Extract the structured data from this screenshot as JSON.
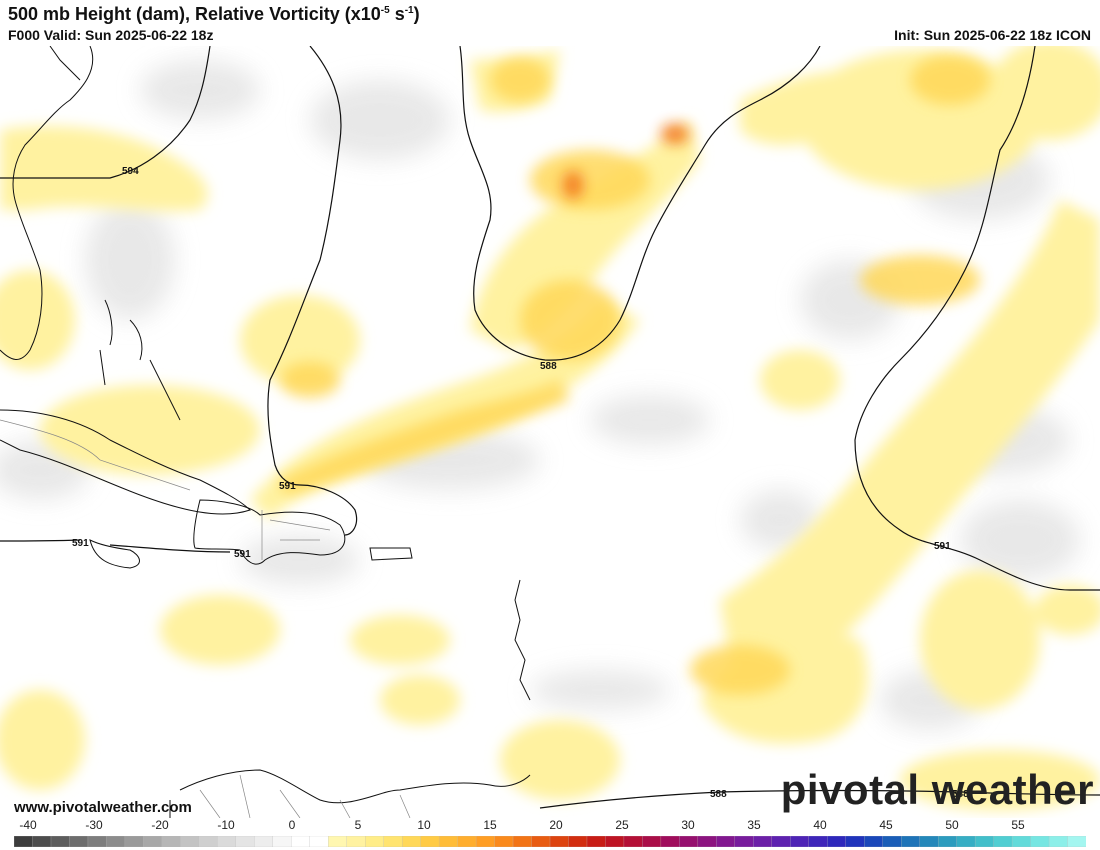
{
  "header": {
    "title_main": "500 mb Height (dam), Relative Vorticity (x10",
    "title_exp1": "-5",
    "title_mid": " s",
    "title_exp2": "-1",
    "title_end": ")",
    "valid": "F000 Valid: Sun 2025-06-22 18z",
    "init": "Init: Sun 2025-06-22 18z ICON"
  },
  "footer": {
    "website": "www.pivotalweather.com",
    "logo": "pivotal weather"
  },
  "contour_labels": [
    "594",
    "588",
    "591",
    "591",
    "591",
    "591",
    "588",
    "588"
  ],
  "colorbar": {
    "tick_labels": [
      "-40",
      "-30",
      "-20",
      "-10",
      "0",
      "5",
      "10",
      "15",
      "20",
      "25",
      "30",
      "35",
      "40",
      "45",
      "50",
      "55"
    ],
    "colors": [
      "#3d3d3d",
      "#4d4d4d",
      "#5d5d5d",
      "#6d6d6d",
      "#7d7d7d",
      "#8c8c8c",
      "#9a9a9a",
      "#a8a8a8",
      "#b6b6b6",
      "#c3c3c3",
      "#cfcfcf",
      "#dadada",
      "#e4e4e4",
      "#ededed",
      "#f6f6f6",
      "#ffffff",
      "#ffffff",
      "#fff7b0",
      "#fff2a0",
      "#ffed88",
      "#ffe470",
      "#ffd858",
      "#ffcb45",
      "#ffbd38",
      "#ffae2e",
      "#ff9e24",
      "#fa8a1c",
      "#f27416",
      "#e85c12",
      "#dd4410",
      "#d22e10",
      "#c81d16",
      "#be1424",
      "#b41036",
      "#aa0e48",
      "#a00d5c",
      "#96106f",
      "#8c1480",
      "#821890",
      "#781c9d",
      "#6c20a8",
      "#5e22b0",
      "#4e24b6",
      "#3e26ba",
      "#2e28bc",
      "#2034bc",
      "#1a48ba",
      "#1a5eb8",
      "#1e74b8",
      "#2488ba",
      "#2c9cbe",
      "#36aec4",
      "#42bfca",
      "#50ced2",
      "#62dbda",
      "#76e6e2",
      "#8cefe9",
      "#a4f6f0"
    ]
  }
}
